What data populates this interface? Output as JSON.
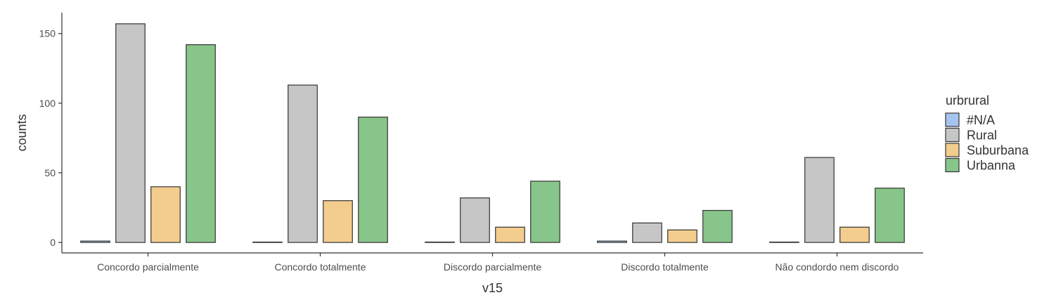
{
  "chart_data": {
    "type": "bar",
    "title": "",
    "xlabel": "v15",
    "ylabel": "counts",
    "ylim": [
      -7.5,
      165
    ],
    "yticks": [
      0,
      50,
      100,
      150
    ],
    "categories": [
      "Concordo parcialmente",
      "Concordo totalmente",
      "Discordo parcialmente",
      "Discordo totalmente",
      "Não condordo nem discordo"
    ],
    "legend_title": "urbrural",
    "legend_position": "right",
    "grid": false,
    "series": [
      {
        "name": "#N/A",
        "color": "#a6c4f0",
        "values": [
          1,
          0,
          0,
          1,
          0
        ]
      },
      {
        "name": "Rural",
        "color": "#c6c6c6",
        "values": [
          157,
          113,
          32,
          14,
          61
        ]
      },
      {
        "name": "Suburbana",
        "color": "#f2cd8e",
        "values": [
          40,
          30,
          11,
          9,
          11
        ]
      },
      {
        "name": "Urbanna",
        "color": "#88c58a",
        "values": [
          142,
          90,
          44,
          23,
          39
        ]
      }
    ]
  }
}
